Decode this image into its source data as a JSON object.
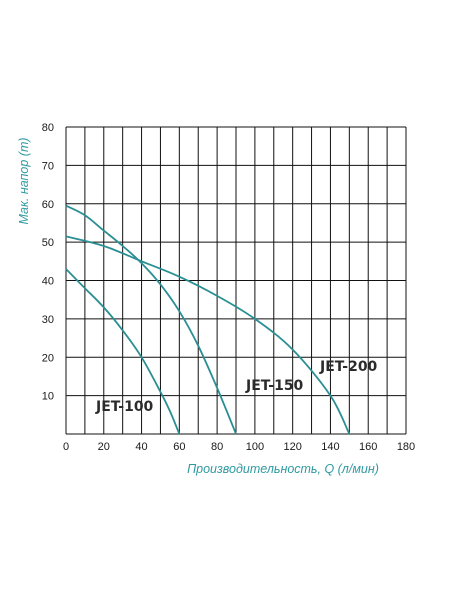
{
  "chart_data": {
    "type": "line",
    "xlabel": "Производительность, Q (л/мин)",
    "ylabel": "Мак. напор (m)",
    "xlim": [
      0,
      180
    ],
    "ylim": [
      0,
      80
    ],
    "x_ticks": [
      "0",
      "20",
      "40",
      "60",
      "80",
      "100",
      "120",
      "140",
      "160",
      "180"
    ],
    "y_ticks": [
      "10",
      "20",
      "30",
      "40",
      "50",
      "60",
      "70",
      "80"
    ],
    "grid": true,
    "colors": {
      "curve": "#2a8f93",
      "axis_title": "#2f9aa0",
      "grid": "#111111"
    },
    "series": [
      {
        "name": "JET-100",
        "x": [
          0,
          10,
          20,
          30,
          40,
          50,
          55,
          60
        ],
        "y": [
          43,
          38,
          33,
          27,
          20,
          11,
          6,
          0
        ]
      },
      {
        "name": "JET-150",
        "x": [
          0,
          10,
          20,
          30,
          40,
          50,
          60,
          70,
          80,
          90
        ],
        "y": [
          59.5,
          57,
          53,
          49,
          44.5,
          39,
          32,
          23,
          12,
          0
        ]
      },
      {
        "name": "JET-200",
        "x": [
          0,
          20,
          40,
          60,
          80,
          100,
          120,
          140,
          150
        ],
        "y": [
          51.5,
          49,
          45,
          41,
          36,
          30,
          22,
          10,
          0
        ]
      }
    ]
  }
}
